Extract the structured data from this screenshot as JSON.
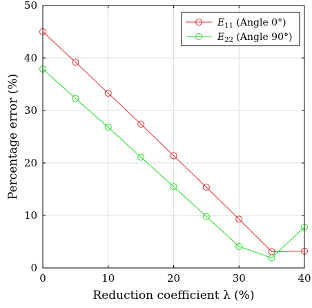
{
  "chart_data": {
    "type": "line",
    "title": "",
    "xlabel": "Reduction coefficient λ (%)",
    "ylabel": "Percentage error (%)",
    "xlim": [
      0,
      40
    ],
    "ylim": [
      0,
      50
    ],
    "xticks": [
      0,
      10,
      20,
      30,
      40
    ],
    "yticks": [
      0,
      10,
      20,
      30,
      40,
      50
    ],
    "grid": true,
    "legend_position": "top-right",
    "x": [
      0,
      5,
      10,
      15,
      20,
      25,
      30,
      35,
      40
    ],
    "series": [
      {
        "name_main": "E",
        "name_sub": "11",
        "name_rest": " (Angle 0°)",
        "color": "#e03030",
        "values": [
          45.0,
          39.2,
          33.3,
          27.4,
          21.4,
          15.4,
          9.3,
          3.1,
          3.2
        ]
      },
      {
        "name_main": "E",
        "name_sub": "22",
        "name_rest": " (Angle 90°)",
        "color": "#22dd22",
        "values": [
          37.9,
          32.3,
          26.8,
          21.1,
          15.5,
          9.8,
          4.1,
          1.9,
          7.8
        ]
      }
    ]
  }
}
